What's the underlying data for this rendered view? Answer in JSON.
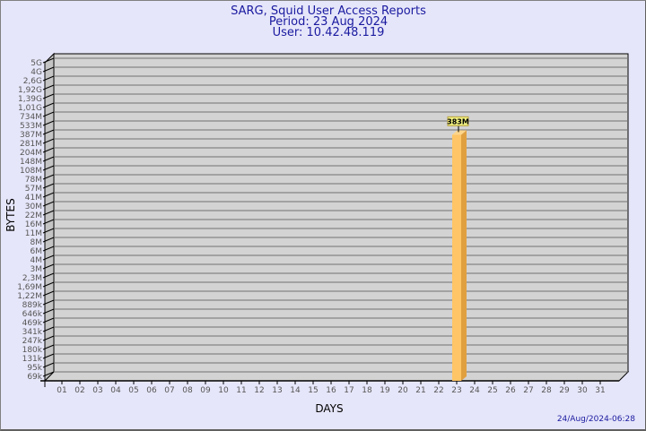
{
  "chart_data": {
    "type": "bar",
    "title": [
      "SARG, Squid User Access Reports",
      "Period: 23 Aug 2024",
      "User: 10.42.48.119"
    ],
    "xlabel": "DAYS",
    "ylabel": "BYTES",
    "y_scale": "log",
    "y_ticks": [
      "5G",
      "4G",
      "2,6G",
      "1,92G",
      "1,39G",
      "1,01G",
      "734M",
      "533M",
      "387M",
      "281M",
      "204M",
      "148M",
      "108M",
      "78M",
      "57M",
      "41M",
      "30M",
      "22M",
      "16M",
      "11M",
      "8M",
      "6M",
      "4M",
      "3M",
      "2,3M",
      "1,69M",
      "1,22M",
      "889k",
      "646k",
      "469k",
      "341k",
      "247k",
      "180k",
      "131k",
      "95k",
      "69k"
    ],
    "categories": [
      "01",
      "02",
      "03",
      "04",
      "05",
      "06",
      "07",
      "08",
      "09",
      "10",
      "11",
      "12",
      "13",
      "14",
      "15",
      "16",
      "17",
      "18",
      "19",
      "20",
      "21",
      "22",
      "23",
      "24",
      "25",
      "26",
      "27",
      "28",
      "29",
      "30",
      "31"
    ],
    "bars": [
      {
        "day": "23",
        "value": "383M",
        "label": "383M"
      }
    ],
    "grid": true,
    "colors": {
      "background": "#e6e6fa",
      "plot": "#d3d3d3",
      "bar": "#ffc566",
      "bar_side": "#e0a040",
      "title": "#1a1aa0"
    },
    "timestamp": "24/Aug/2024-06:28"
  }
}
